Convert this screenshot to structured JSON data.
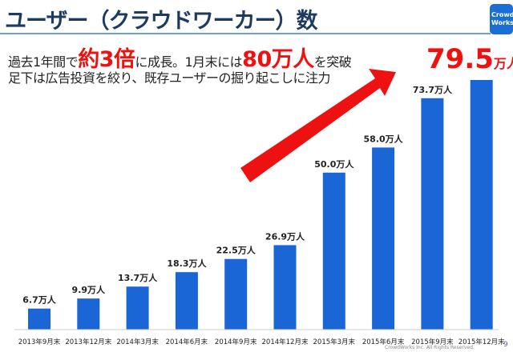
{
  "title": "ユーザー（クラウドワーカー）数",
  "logo": "CrowdWorks",
  "headline": {
    "p1": "過去1年間で",
    "h1": "約3倍",
    "p2": "に成長。1月末には",
    "h2": "80万人",
    "p3": "を突破"
  },
  "subline": "足下は広告投資を絞り、既存ユーザーの掘り起こしに注力",
  "callout": {
    "value": "79.5",
    "unit": "万人"
  },
  "footer": "CrowdWorks Inc. All Rights Reserved.",
  "page_number": "9",
  "colors": {
    "bar": "#1a66d6",
    "accent": "#f01010",
    "title": "#1f3a5f"
  },
  "chart_data": {
    "type": "bar",
    "categories": [
      "2013年9月末",
      "2013年12月末",
      "2014年3月末",
      "2014年6月末",
      "2014年9月末",
      "2014年12月末",
      "2015年3月末",
      "2015年6月末",
      "2015年9月末",
      "2015年12月末"
    ],
    "values": [
      6.7,
      9.9,
      13.7,
      18.3,
      22.5,
      26.9,
      50.0,
      58.0,
      73.7,
      79.5
    ],
    "labels": [
      "6.7万人",
      "9.9万人",
      "13.7万人",
      "18.3万人",
      "22.5万人",
      "26.9万人",
      "50.0万人",
      "58.0万人",
      "73.7万人",
      ""
    ],
    "unit": "万人",
    "ylim": [
      0,
      80
    ],
    "grid": false
  }
}
